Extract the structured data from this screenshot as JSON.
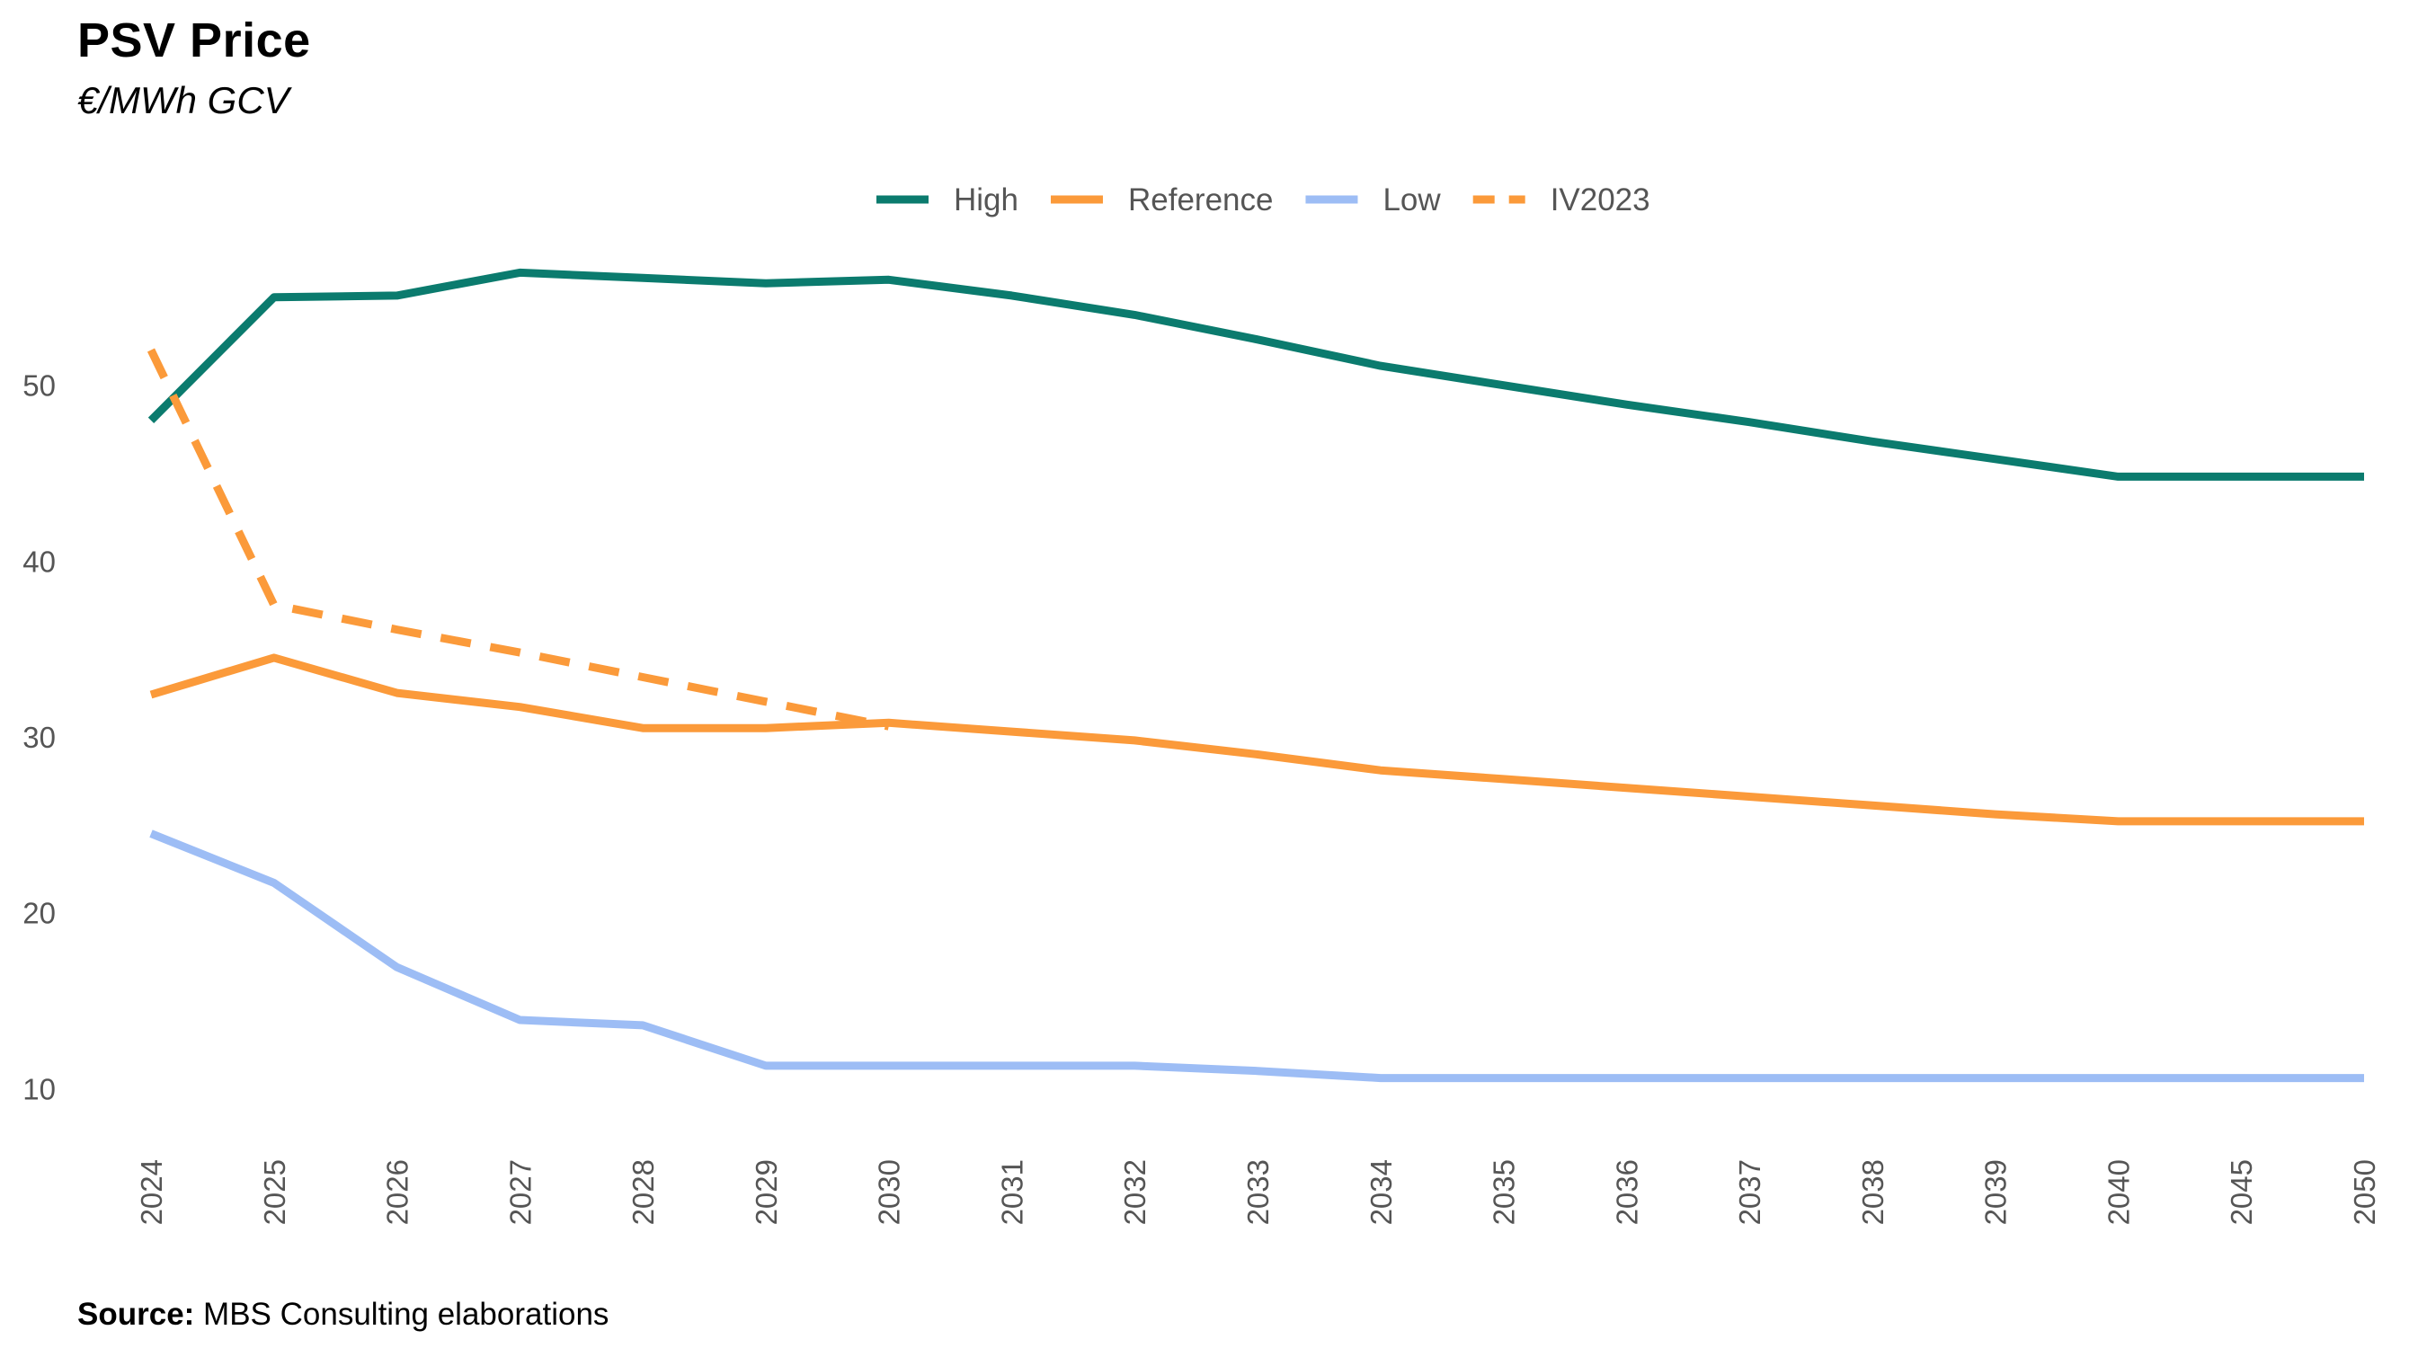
{
  "title": "PSV Price",
  "subtitle": "€/MWh GCV",
  "source": {
    "label": "Source:",
    "text": "MBS Consulting elaborations"
  },
  "chart_data": {
    "type": "line",
    "title": "PSV Price",
    "subtitle": "€/MWh GCV",
    "xlabel": "",
    "ylabel": "€/MWh GCV",
    "categories": [
      "2024",
      "2025",
      "2026",
      "2027",
      "2028",
      "2029",
      "2030",
      "2031",
      "2032",
      "2033",
      "2034",
      "2035",
      "2036",
      "2037",
      "2038",
      "2039",
      "2040",
      "2045",
      "2050"
    ],
    "ylim": [
      7,
      60
    ],
    "yticks": [
      10,
      20,
      30,
      40,
      50
    ],
    "grid": false,
    "legend_position": "top-center",
    "series": [
      {
        "name": "High",
        "color": "#0B7B6E",
        "dashed": false,
        "values": [
          48.0,
          55.0,
          55.1,
          56.4,
          56.1,
          55.8,
          56.0,
          55.1,
          54.0,
          52.6,
          51.1,
          50.0,
          48.9,
          47.9,
          46.8,
          45.8,
          44.8,
          44.8,
          44.8
        ]
      },
      {
        "name": "Reference",
        "color": "#FB9A3A",
        "dashed": false,
        "values": [
          32.4,
          34.5,
          32.5,
          31.7,
          30.5,
          30.5,
          30.8,
          30.3,
          29.8,
          29.0,
          28.1,
          27.6,
          27.1,
          26.6,
          26.1,
          25.6,
          25.2,
          25.2,
          25.2
        ]
      },
      {
        "name": "Low",
        "color": "#9DBDF5",
        "dashed": false,
        "values": [
          24.5,
          21.7,
          16.9,
          13.9,
          13.6,
          11.3,
          11.3,
          11.3,
          11.3,
          11.0,
          10.6,
          10.6,
          10.6,
          10.6,
          10.6,
          10.6,
          10.6,
          10.6,
          10.6
        ]
      },
      {
        "name": "IV2023",
        "color": "#FB9A3A",
        "dashed": true,
        "values": [
          52.0,
          37.5,
          36.1,
          34.8,
          33.4,
          32.0,
          30.6,
          null,
          null,
          null,
          null,
          null,
          null,
          null,
          null,
          null,
          null,
          null,
          null
        ]
      }
    ]
  }
}
